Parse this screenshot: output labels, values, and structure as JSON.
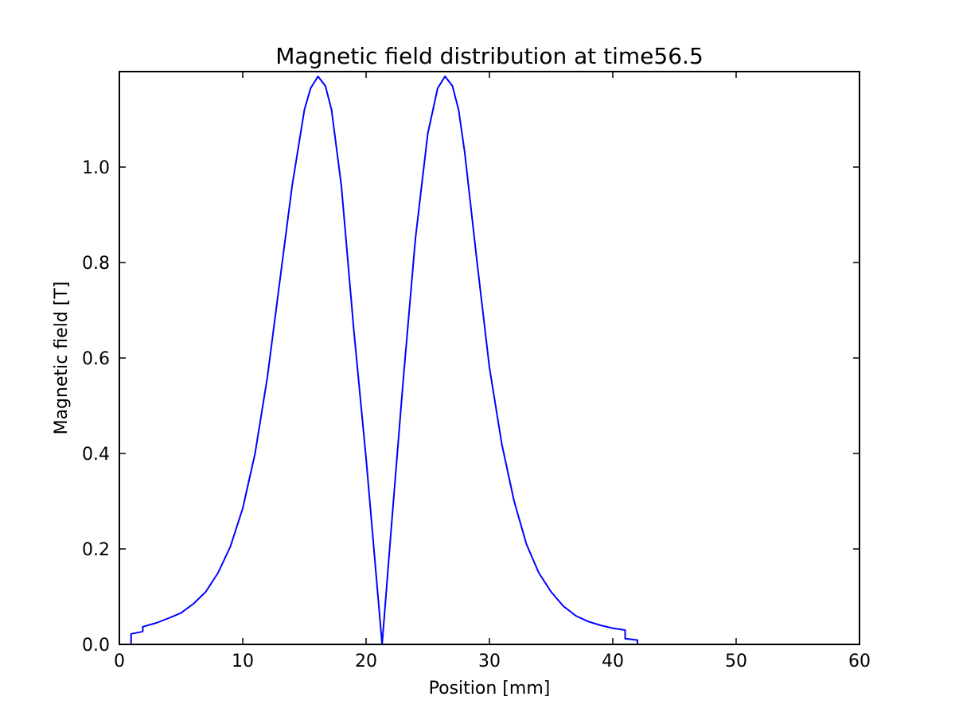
{
  "chart_data": {
    "type": "line",
    "title": "Magnetic field distribution at time56.5",
    "xlabel": "Position [mm]",
    "ylabel": "Magnetic field [T]",
    "xlim": [
      0,
      60
    ],
    "ylim": [
      0,
      1.2
    ],
    "xticks": [
      0,
      10,
      20,
      30,
      40,
      50,
      60
    ],
    "yticks": [
      0.0,
      0.2,
      0.4,
      0.6,
      0.8,
      1.0
    ],
    "ytick_labels": [
      "0.0",
      "0.2",
      "0.4",
      "0.6",
      "0.8",
      "1.0"
    ],
    "grid": false,
    "series": [
      {
        "color": "#0000ff",
        "x": [
          0,
          0.95,
          0.95,
          1.9,
          1.9,
          3,
          4,
          5,
          6,
          7,
          8,
          9,
          10,
          11,
          12,
          13,
          14,
          15,
          15.5,
          16.1,
          16.7,
          17.2,
          18,
          19,
          20,
          21.3,
          22,
          23,
          24,
          25,
          25.8,
          26.4,
          27,
          27.5,
          28,
          29,
          30,
          31,
          32,
          33,
          34,
          35,
          36,
          37,
          38,
          39,
          40,
          41,
          41,
          42,
          42,
          60
        ],
        "y": [
          0,
          0,
          0.022,
          0.027,
          0.037,
          0.045,
          0.055,
          0.066,
          0.085,
          0.11,
          0.15,
          0.205,
          0.285,
          0.4,
          0.56,
          0.76,
          0.96,
          1.12,
          1.165,
          1.19,
          1.17,
          1.12,
          0.96,
          0.66,
          0.39,
          0.0,
          0.23,
          0.55,
          0.85,
          1.07,
          1.165,
          1.19,
          1.17,
          1.12,
          1.03,
          0.8,
          0.58,
          0.42,
          0.3,
          0.21,
          0.15,
          0.11,
          0.08,
          0.06,
          0.048,
          0.04,
          0.034,
          0.03,
          0.012,
          0.009,
          0,
          0
        ]
      }
    ]
  }
}
